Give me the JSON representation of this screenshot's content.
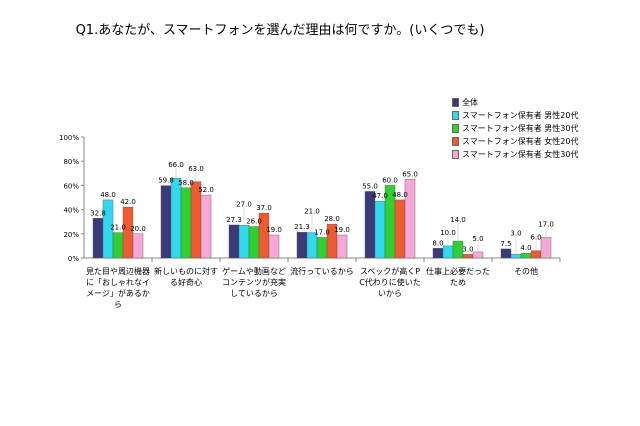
{
  "chart_data": {
    "type": "bar",
    "title": "Q1.あなたが、スマートフォンを選んだ理由は何ですか。(いくつでも)",
    "categories": [
      "見た目や周辺機器に「おしゃれなイメージ」があるから",
      "新しいものに対する好奇心",
      "ゲームや動画などコンテンツが充実しているから",
      "流行っているから",
      "スペックが高くPC代わりに使いたいから",
      "仕事上必要だったため",
      "その他"
    ],
    "series": [
      {
        "name": "全体",
        "color": "#3a3a7a",
        "values": [
          32.8,
          59.8,
          27.3,
          21.3,
          55.0,
          8.0,
          7.5
        ]
      },
      {
        "name": "スマートフォン保有者 男性20代",
        "color": "#30d8f0",
        "values": [
          48.0,
          66.0,
          27.0,
          21.0,
          47.0,
          10.0,
          3.0
        ]
      },
      {
        "name": "スマートフォン保有者 男性30代",
        "color": "#30d030",
        "values": [
          21.0,
          58.0,
          26.0,
          17.0,
          60.0,
          14.0,
          4.0
        ]
      },
      {
        "name": "スマートフォン保有者 女性20代",
        "color": "#f05a30",
        "values": [
          42.0,
          63.0,
          37.0,
          28.0,
          48.0,
          3.0,
          6.0
        ]
      },
      {
        "name": "スマートフォン保有者 女性30代",
        "color": "#f8a8d8",
        "values": [
          20.0,
          52.0,
          19.0,
          19.0,
          65.0,
          5.0,
          17.0
        ]
      }
    ],
    "yticks": [
      "0%",
      "20%",
      "40%",
      "60%",
      "80%",
      "100%"
    ],
    "ylim": [
      0,
      100
    ],
    "grid": false,
    "legend": "top-right"
  }
}
